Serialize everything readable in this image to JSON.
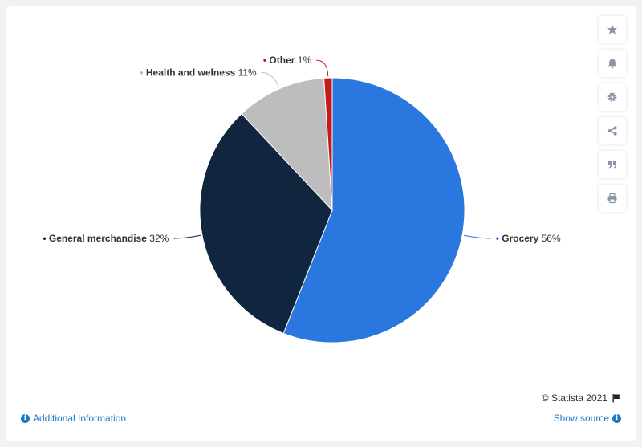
{
  "chart_data": {
    "type": "pie",
    "slices": [
      {
        "label": "Grocery",
        "value": 56,
        "value_text": "56%",
        "color": "#2a77df"
      },
      {
        "label": "General merchandise",
        "value": 32,
        "value_text": "32%",
        "color": "#10253e"
      },
      {
        "label": "Health and welness",
        "value": 11,
        "value_text": "11%",
        "color": "#bdbdbd"
      },
      {
        "label": "Other",
        "value": 1,
        "value_text": "1%",
        "color": "#c41a1a"
      }
    ],
    "start": "top",
    "direction": "clockwise",
    "legend": "none"
  },
  "toolbar": {
    "icons": [
      "star-icon",
      "bell-icon",
      "gear-icon",
      "share-icon",
      "quote-icon",
      "print-icon"
    ]
  },
  "footer": {
    "copyright": "© Statista 2021",
    "additional_info": "Additional Information",
    "show_source": "Show source"
  }
}
